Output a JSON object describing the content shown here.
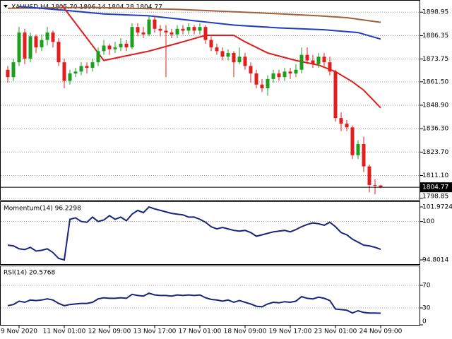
{
  "chart_data": [
    {
      "type": "candlestick",
      "title": "XAUUSD,H4 1805.70 1806.14 1804.28 1804.77",
      "categories": [
        null,
        null,
        "9 Nov 2020",
        null,
        null,
        null,
        null,
        null,
        null,
        null,
        "11 Nov 01:00",
        null,
        null,
        null,
        null,
        null,
        null,
        null,
        "12 Nov 09:00",
        null,
        null,
        null,
        null,
        null,
        null,
        null,
        "13 Nov 17:00",
        null,
        null,
        null,
        null,
        null,
        null,
        null,
        "17 Nov 01:00",
        null,
        null,
        null,
        null,
        null,
        null,
        null,
        "18 Nov 09:00",
        null,
        null,
        null,
        null,
        null,
        null,
        null,
        "19 Nov 17:00",
        null,
        null,
        null,
        null,
        null,
        null,
        null,
        "23 Nov 01:00",
        null,
        null,
        null,
        null,
        null,
        null,
        null,
        "24 Nov 09:00"
      ],
      "open": [
        1868,
        1864,
        1872,
        1888,
        1874,
        1886,
        1880,
        1884,
        1888,
        1883,
        1872,
        1862,
        1866,
        1867,
        1870,
        1869,
        1872,
        1878,
        1881,
        1879,
        1880,
        1882,
        1880,
        1891,
        1888,
        1887,
        1895,
        1890,
        1889,
        1888,
        1887,
        1890,
        1889,
        1891,
        1889,
        1891,
        1884,
        1880,
        1878,
        1875,
        1877,
        1872,
        1875,
        1870,
        1866,
        1860,
        1858,
        1863,
        1866,
        1864,
        1867,
        1866,
        1868,
        1876,
        1873,
        1871,
        1875,
        1872,
        1867,
        1842,
        1839,
        1837,
        1822,
        1828,
        1816,
        1806,
        1805.7
      ],
      "high": [
        1870,
        1874,
        1891,
        1890,
        1888,
        1887,
        1887,
        1891,
        1889,
        1885,
        1874,
        1868,
        1869,
        1872,
        1872,
        1874,
        1880,
        1884,
        1882,
        1883,
        1885,
        1884,
        1893,
        1893,
        1891,
        1897,
        1897,
        1892,
        1892,
        1890,
        1892,
        1892,
        1893,
        1892,
        1893,
        1892,
        1886,
        1882,
        1880,
        1879,
        1878,
        1880,
        1877,
        1872,
        1868,
        1863,
        1865,
        1868,
        1868,
        1869,
        1869,
        1871,
        1880,
        1880,
        1876,
        1877,
        1877,
        1875,
        1868,
        1845,
        1841,
        1838,
        1830,
        1832,
        1817,
        1809,
        1806.14
      ],
      "low": [
        1861,
        1862,
        1870,
        1871,
        1872,
        1877,
        1878,
        1881,
        1880,
        1870,
        1858,
        1860,
        1864,
        1865,
        1866,
        1867,
        1870,
        1876,
        1876,
        1877,
        1878,
        1878,
        1879,
        1886,
        1885,
        1886,
        1888,
        1886,
        1864,
        1885,
        1885,
        1887,
        1887,
        1887,
        1887,
        1882,
        1878,
        1876,
        1873,
        1873,
        1864,
        1871,
        1868,
        1861,
        1858,
        1856,
        1854,
        1861,
        1862,
        1862,
        1863,
        1864,
        1866,
        1871,
        1869,
        1869,
        1870,
        1865,
        1840,
        1835,
        1835,
        1820,
        1820,
        1813,
        1802,
        1801,
        1804.28
      ],
      "close": [
        1864,
        1872,
        1888,
        1874,
        1886,
        1880,
        1884,
        1888,
        1883,
        1872,
        1862,
        1866,
        1867,
        1870,
        1869,
        1872,
        1878,
        1881,
        1879,
        1880,
        1882,
        1880,
        1891,
        1888,
        1887,
        1895,
        1890,
        1889,
        1888,
        1887,
        1890,
        1889,
        1891,
        1889,
        1891,
        1884,
        1880,
        1878,
        1875,
        1877,
        1872,
        1875,
        1870,
        1866,
        1860,
        1858,
        1863,
        1866,
        1864,
        1867,
        1866,
        1868,
        1876,
        1873,
        1871,
        1875,
        1872,
        1867,
        1842,
        1839,
        1837,
        1822,
        1828,
        1816,
        1806,
        1805.7,
        1804.77
      ],
      "up_color": "#1e9e1e",
      "down_color": "#e01e1e",
      "series": [
        {
          "color": "#a0603c",
          "x": [
            0,
            15,
            30,
            45,
            55,
            60,
            66
          ],
          "values": [
            1901,
            1901.5,
            1900.5,
            1898.5,
            1897,
            1896,
            1893.5
          ]
        },
        {
          "color": "#1e3cc8",
          "x": [
            2,
            10,
            17,
            25,
            31,
            40,
            48,
            56,
            62,
            66
          ],
          "values": [
            1902,
            1900,
            1898,
            1897,
            1895,
            1892,
            1890.5,
            1889.5,
            1888,
            1884.5
          ]
        },
        {
          "color": "#e01e1e",
          "x": [
            9.5,
            17,
            25,
            31,
            35,
            40,
            42,
            46,
            51,
            55,
            58,
            61,
            63,
            66
          ],
          "values": [
            1903,
            1873,
            1878,
            1883,
            1886.5,
            1886.5,
            1883,
            1877,
            1873,
            1870.5,
            1867,
            1861.5,
            1857,
            1847.5
          ]
        }
      ],
      "ylim": [
        1798,
        1905.5
      ],
      "yticks": [
        1898.95,
        1886.35,
        1873.75,
        {
          "value": 1861.5,
          "label": "1861.50"
        },
        {
          "value": 1848.9,
          "label": "1848.90"
        },
        {
          "value": 1836.3,
          "label": "1836.30"
        },
        {
          "value": 1823.7,
          "label": "1823.70"
        },
        {
          "value": 1811.1,
          "label": "1811.10"
        },
        1798.85
      ]
    },
    {
      "type": "line",
      "title": "Momentum(14) 96.2298",
      "color": "#1a237e",
      "values": [
        96.8,
        96.7,
        96.3,
        96.2,
        96.5,
        96.0,
        96.1,
        96.3,
        95.8,
        95.0,
        94.8,
        100.3,
        100.5,
        100.0,
        99.9,
        100.6,
        100.0,
        100.2,
        100.8,
        100.3,
        100.6,
        100.1,
        101.0,
        101.5,
        101.2,
        101.97,
        101.7,
        101.5,
        101.3,
        101.1,
        101.0,
        100.9,
        100.6,
        100.6,
        100.3,
        99.9,
        99.3,
        99.0,
        99.2,
        99.0,
        98.8,
        98.7,
        98.8,
        98.5,
        98.0,
        98.2,
        98.4,
        98.6,
        98.7,
        98.8,
        98.6,
        98.9,
        99.3,
        99.6,
        99.8,
        99.7,
        99.5,
        99.9,
        99.3,
        98.5,
        98.2,
        97.6,
        97.2,
        96.8,
        96.7,
        96.5,
        96.2298
      ],
      "ylim": [
        94.8014,
        101.9724
      ],
      "yticks": [
        101.9724,
        100,
        94.8014
      ]
    },
    {
      "type": "line",
      "title": "RSI(14) 20.5768",
      "color": "#1a237e",
      "values": [
        34,
        36,
        42,
        40,
        44,
        43,
        44,
        46,
        44,
        38,
        34,
        36,
        37,
        38,
        38,
        40,
        46,
        48,
        47,
        47,
        48,
        47,
        54,
        52,
        51,
        56,
        53,
        52,
        52,
        51,
        53,
        52,
        53,
        52,
        53,
        48,
        45,
        44,
        42,
        44,
        40,
        43,
        40,
        37,
        33,
        32,
        37,
        40,
        39,
        41,
        40,
        42,
        50,
        47,
        46,
        49,
        47,
        43,
        28,
        27,
        26,
        21,
        25,
        22,
        21,
        21,
        20.5768
      ],
      "ylim": [
        0,
        100
      ],
      "yticks": [
        70,
        30,
        0
      ]
    }
  ]
}
